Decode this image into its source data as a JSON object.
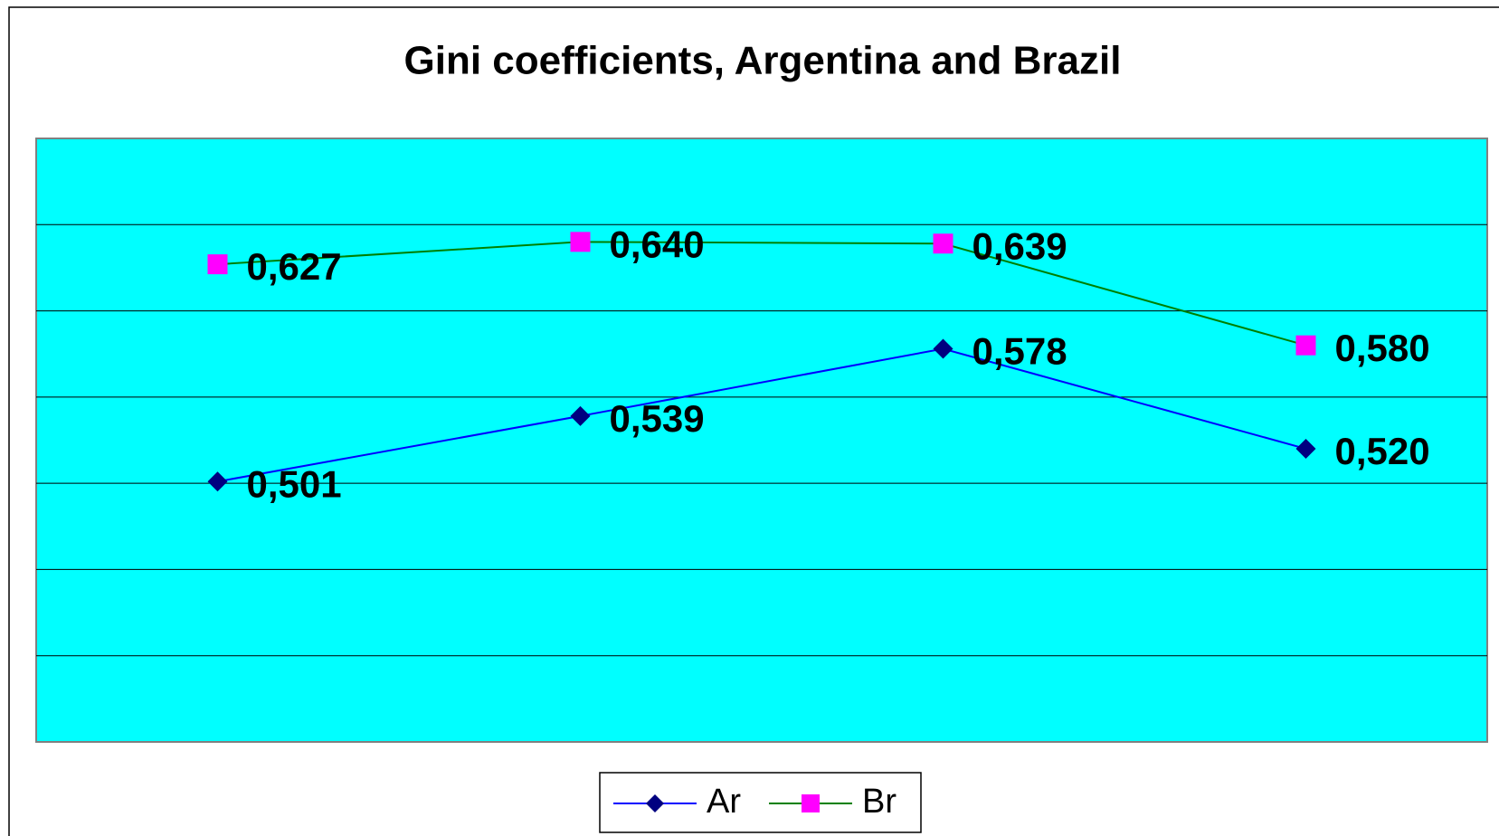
{
  "chart_data": {
    "type": "line",
    "title": "Gini coefficients, Argentina and Brazil",
    "categories": [
      null,
      null,
      null,
      null
    ],
    "series": [
      {
        "name": "Ar",
        "color": "#0000ff",
        "marker_color": "#000080",
        "marker": "diamond",
        "values": [
          0.501,
          0.539,
          0.578,
          0.52
        ],
        "value_labels": [
          "0,501",
          "0,539",
          "0,578",
          "0,520"
        ]
      },
      {
        "name": "Br",
        "color": "#008000",
        "marker_color": "#ff00ff",
        "marker": "square",
        "values": [
          0.627,
          0.64,
          0.639,
          0.58
        ],
        "value_labels": [
          "0,627",
          "0,640",
          "0,639",
          "0,580"
        ]
      }
    ],
    "ylim": [
      0.35,
      0.7
    ],
    "yticks": [
      0.4,
      0.45,
      0.5,
      0.55,
      0.6,
      0.65
    ],
    "grid": true,
    "plot_background": "#00ffff",
    "legend": "bottom"
  }
}
